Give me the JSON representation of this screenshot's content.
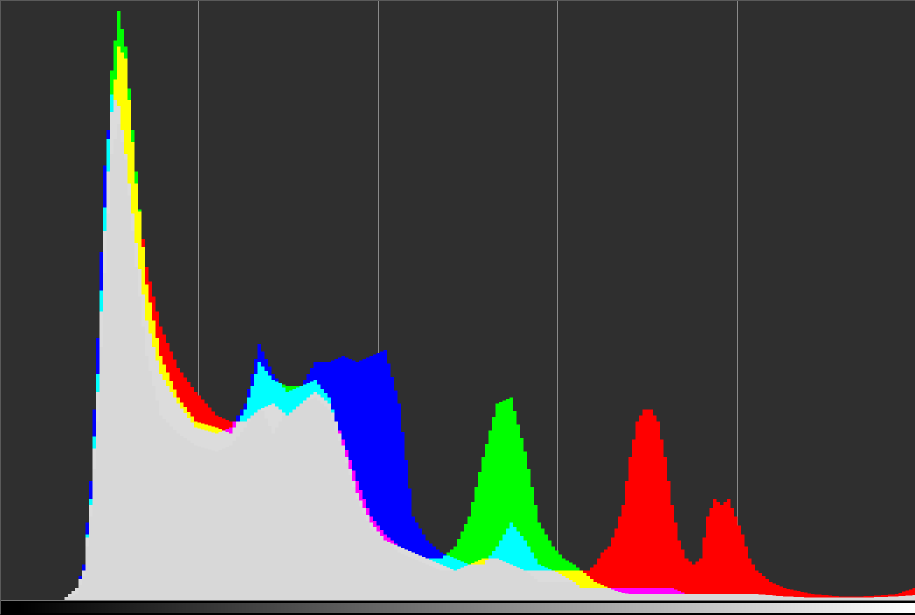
{
  "histogram": {
    "mode": "RGB overlay",
    "gridlines": 4,
    "channel_colors": {
      "red": "#ff0000",
      "green": "#00ff00",
      "blue": "#0000ff",
      "cyan": "#00ffff",
      "magenta": "#ff00ff",
      "yellow": "#ffff00",
      "white": "#dcdcdc"
    },
    "background": "#2f2f2f",
    "grid_color": "#8a8a8a"
  },
  "chart_data": {
    "type": "area",
    "title": "",
    "xlabel": "",
    "ylabel": "",
    "xlim": [
      0,
      255
    ],
    "ylim": [
      0,
      1
    ],
    "x": [
      0,
      12,
      16,
      18,
      20,
      22,
      24,
      26,
      28,
      30,
      33,
      36,
      40,
      45,
      50,
      56,
      60,
      64,
      68,
      72,
      76,
      80,
      84,
      88,
      92,
      96,
      100,
      104,
      108,
      112,
      116,
      120,
      124,
      128,
      132,
      136,
      140,
      144,
      148,
      152,
      155,
      158,
      160,
      162,
      164,
      166,
      168,
      170,
      172,
      174,
      176,
      178,
      180,
      182,
      184,
      186,
      188,
      190,
      192,
      194,
      196,
      198,
      200,
      202,
      204,
      206,
      208,
      210,
      214,
      218,
      222,
      226,
      230,
      234,
      240,
      246,
      250,
      255
    ],
    "series": [
      {
        "name": "red",
        "values": [
          0,
          0,
          0.02,
          0.05,
          0.16,
          0.35,
          0.62,
          0.82,
          0.93,
          0.91,
          0.7,
          0.56,
          0.46,
          0.39,
          0.35,
          0.31,
          0.3,
          0.3,
          0.32,
          0.33,
          0.31,
          0.33,
          0.35,
          0.33,
          0.27,
          0.2,
          0.14,
          0.11,
          0.09,
          0.08,
          0.07,
          0.06,
          0.05,
          0.06,
          0.07,
          0.07,
          0.06,
          0.05,
          0.05,
          0.05,
          0.05,
          0.05,
          0.05,
          0.05,
          0.06,
          0.08,
          0.09,
          0.12,
          0.16,
          0.24,
          0.3,
          0.32,
          0.32,
          0.3,
          0.24,
          0.16,
          0.1,
          0.07,
          0.06,
          0.07,
          0.14,
          0.17,
          0.16,
          0.17,
          0.14,
          0.11,
          0.07,
          0.05,
          0.03,
          0.02,
          0.015,
          0.01,
          0.008,
          0.006,
          0.006,
          0.008,
          0.01,
          0.02
        ]
      },
      {
        "name": "green",
        "values": [
          0,
          0,
          0.02,
          0.05,
          0.17,
          0.38,
          0.66,
          0.89,
          0.99,
          0.93,
          0.72,
          0.53,
          0.41,
          0.34,
          0.3,
          0.29,
          0.28,
          0.32,
          0.4,
          0.37,
          0.36,
          0.36,
          0.37,
          0.34,
          0.26,
          0.18,
          0.13,
          0.1,
          0.09,
          0.08,
          0.07,
          0.07,
          0.09,
          0.14,
          0.24,
          0.33,
          0.34,
          0.25,
          0.13,
          0.09,
          0.07,
          0.06,
          0.05,
          0.04,
          0.03,
          0.025,
          0.02,
          0.015,
          0.012,
          0.01,
          0.01,
          0.01,
          0.01,
          0.01,
          0.01,
          0.01,
          0.01,
          0.01,
          0.01,
          0.01,
          0.01,
          0.01,
          0.01,
          0.01,
          0.01,
          0.01,
          0.01,
          0.01,
          0.008,
          0.006,
          0.005,
          0.004,
          0.004,
          0.004,
          0.004,
          0.005,
          0.006,
          0.008
        ]
      },
      {
        "name": "blue",
        "values": [
          0,
          0,
          0.02,
          0.06,
          0.2,
          0.44,
          0.73,
          0.85,
          0.83,
          0.75,
          0.6,
          0.47,
          0.38,
          0.33,
          0.29,
          0.28,
          0.29,
          0.33,
          0.43,
          0.38,
          0.35,
          0.36,
          0.4,
          0.4,
          0.41,
          0.4,
          0.41,
          0.42,
          0.33,
          0.14,
          0.1,
          0.08,
          0.07,
          0.06,
          0.06,
          0.09,
          0.13,
          0.1,
          0.06,
          0.05,
          0.04,
          0.03,
          0.02,
          0.02,
          0.02,
          0.02,
          0.02,
          0.02,
          0.02,
          0.02,
          0.02,
          0.02,
          0.02,
          0.02,
          0.02,
          0.02,
          0.015,
          0.01,
          0.01,
          0.01,
          0.01,
          0.01,
          0.01,
          0.01,
          0.01,
          0.01,
          0.01,
          0.01,
          0.008,
          0.006,
          0.005,
          0.004,
          0.004,
          0.004,
          0.004,
          0.005,
          0.006,
          0.008
        ]
      },
      {
        "name": "luminance",
        "values": [
          0,
          0,
          0.01,
          0.04,
          0.14,
          0.3,
          0.55,
          0.75,
          0.8,
          0.74,
          0.56,
          0.41,
          0.31,
          0.28,
          0.26,
          0.25,
          0.26,
          0.29,
          0.33,
          0.28,
          0.32,
          0.33,
          0.34,
          0.32,
          0.25,
          0.17,
          0.12,
          0.1,
          0.08,
          0.07,
          0.06,
          0.05,
          0.05,
          0.06,
          0.07,
          0.08,
          0.07,
          0.05,
          0.03,
          0.03,
          0.03,
          0.03,
          0.03,
          0.03,
          0.025,
          0.02,
          0.02,
          0.02,
          0.02,
          0.02,
          0.015,
          0.012,
          0.01,
          0.01,
          0.01,
          0.01,
          0.01,
          0.01,
          0.01,
          0.01,
          0.01,
          0.01,
          0.01,
          0.01,
          0.01,
          0.01,
          0.01,
          0.01,
          0.008,
          0.006,
          0.005,
          0.004,
          0.004,
          0.004,
          0.004,
          0.005,
          0.006,
          0.008
        ]
      }
    ],
    "grid": true,
    "legend": "none"
  }
}
